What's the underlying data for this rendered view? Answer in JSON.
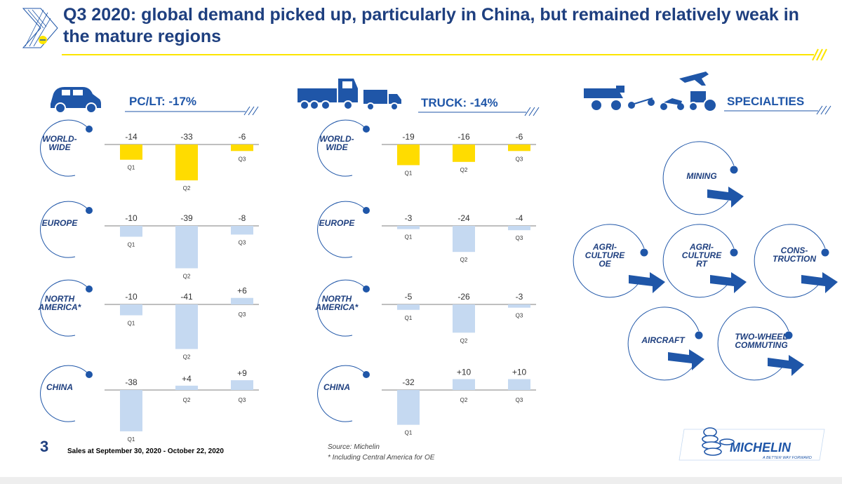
{
  "title": "Q3 2020: global demand picked up, particularly in China, but remained relatively weak in the mature regions",
  "page_number": "3",
  "footer_text": "Sales at September 30, 2020 - October 22, 2020",
  "source_line1": "Source: Michelin",
  "source_line2": "* Including Central America for OE",
  "logo_text": "MICHELIN",
  "logo_tagline": "A BETTER WAY FORWARD",
  "colors": {
    "navy": "#1e3f7f",
    "blue": "#1f56a8",
    "yellow": "#ffdc00",
    "lightblue": "#c5d9f1",
    "accent": "#fce500"
  },
  "chart_data": [
    {
      "type": "bar",
      "title": "PC/LT: -17%",
      "categories": [
        "Q1",
        "Q2",
        "Q3"
      ],
      "series": [
        {
          "name": "WORLD- WIDE",
          "values": [
            -14,
            -33,
            -6
          ]
        },
        {
          "name": "EUROPE",
          "values": [
            -10,
            -39,
            -8
          ]
        },
        {
          "name": "NORTH AMERICA*",
          "values": [
            -10,
            -41,
            6
          ]
        },
        {
          "name": "CHINA",
          "values": [
            -38,
            4,
            9
          ]
        }
      ]
    },
    {
      "type": "bar",
      "title": "TRUCK: -14%",
      "categories": [
        "Q1",
        "Q2",
        "Q3"
      ],
      "series": [
        {
          "name": "WORLD- WIDE",
          "values": [
            -19,
            -16,
            -6
          ]
        },
        {
          "name": "EUROPE",
          "values": [
            -3,
            -24,
            -4
          ]
        },
        {
          "name": "NORTH AMERICA*",
          "values": [
            -5,
            -26,
            -3
          ]
        },
        {
          "name": "CHINA",
          "values": [
            -32,
            10,
            10
          ]
        }
      ]
    }
  ],
  "specialties": {
    "title": "SPECIALTIES",
    "items": [
      {
        "label_lines": [
          "MINING"
        ]
      },
      {
        "label_lines": [
          "AGRI-",
          "CULTURE",
          "OE"
        ]
      },
      {
        "label_lines": [
          "AGRI-",
          "CULTURE",
          "RT"
        ]
      },
      {
        "label_lines": [
          "CONS-",
          "TRUCTION"
        ]
      },
      {
        "label_lines": [
          "AIRCRAFT"
        ]
      },
      {
        "label_lines": [
          "TWO-WHEEL",
          "COMMUTING"
        ]
      }
    ]
  }
}
